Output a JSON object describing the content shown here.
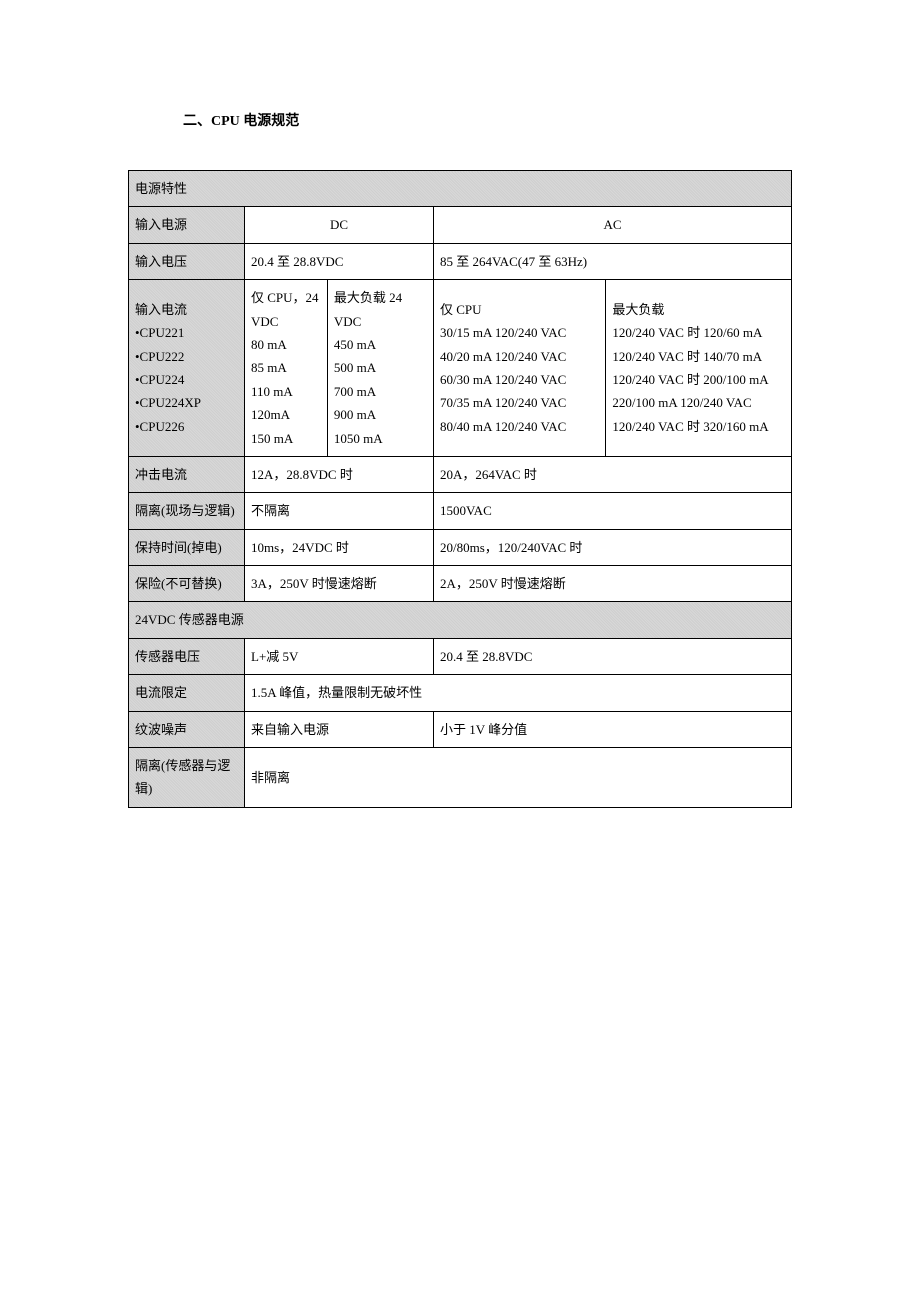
{
  "title": "二、CPU 电源规范",
  "section1_header": "电源特性",
  "r_input_power": {
    "label": "输入电源",
    "dc": "DC",
    "ac": "AC"
  },
  "r_input_voltage": {
    "label": "输入电压",
    "dc": "20.4 至 28.8VDC",
    "ac": "85 至 264VAC(47 至 63Hz)"
  },
  "r_input_current": {
    "label_lines": "输入电流\n  •CPU221\n  •CPU222\n  •CPU224\n  •CPU224XP\n  •CPU226",
    "dc_col1_lines": "仅 CPU，24 VDC\n80 mA\n85 mA\n110 mA\n120mA\n150 mA",
    "dc_col2_lines": "最大负载 24 VDC\n450 mA\n500 mA\n700 mA\n900 mA\n1050 mA",
    "ac_col1_lines": "仅 CPU\n30/15 mA 120/240 VAC\n40/20 mA 120/240 VAC\n60/30 mA 120/240 VAC\n70/35 mA 120/240 VAC\n80/40 mA 120/240 VAC",
    "ac_col2_lines": "最大负载\n120/240 VAC 时 120/60 mA\n120/240 VAC 时 140/70 mA\n120/240 VAC 时 200/100 mA\n220/100 mA 120/240 VAC\n120/240 VAC 时 320/160 mA"
  },
  "r_inrush": {
    "label": "冲击电流",
    "dc": "12A，28.8VDC 时",
    "ac": "20A，264VAC 时"
  },
  "r_isolation_field": {
    "label": "隔离(现场与逻辑)",
    "dc": "不隔离",
    "ac": "1500VAC"
  },
  "r_holdtime": {
    "label": "保持时间(掉电)",
    "dc": "10ms，24VDC 时",
    "ac": "20/80ms，120/240VAC 时"
  },
  "r_fuse": {
    "label": "保险(不可替换)",
    "dc": "3A，250V 时慢速熔断",
    "ac": "2A，250V 时慢速熔断"
  },
  "section2_header": "24VDC 传感器电源",
  "r_sensor_voltage": {
    "label": "传感器电压",
    "dc": "L+减 5V",
    "ac": "20.4 至 28.8VDC"
  },
  "r_current_limit": {
    "label": "电流限定",
    "value": "1.5A 峰值，热量限制无破坏性"
  },
  "r_ripple": {
    "label": "纹波噪声",
    "dc": "来自输入电源",
    "ac": "小于 1V 峰分值"
  },
  "r_isolation_sensor": {
    "label": "隔离(传感器与逻辑)",
    "value": "非隔离"
  }
}
